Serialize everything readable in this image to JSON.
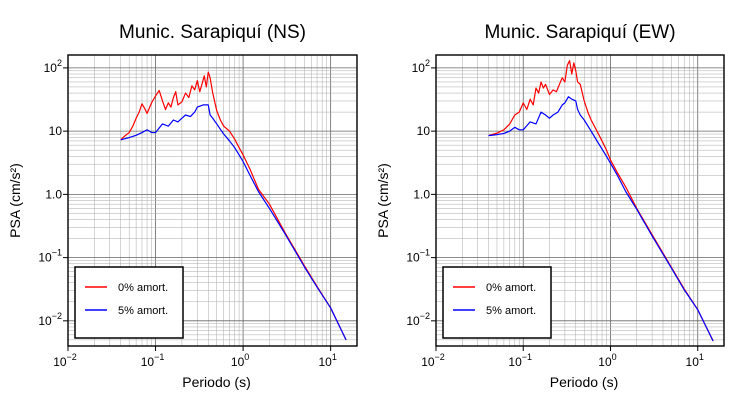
{
  "chart_data": [
    {
      "type": "line",
      "title": "Munic. Sarapiquí (NS)",
      "xlabel": "Periodo (s)",
      "ylabel": "PSA (cm/s²)",
      "xscale": "log",
      "yscale": "log",
      "xlim": [
        0.01,
        20
      ],
      "ylim": [
        0.004,
        160
      ],
      "grid": true,
      "legend_position": "bottom-left",
      "x_ticks": [
        {
          "value": 0.01,
          "base": "10",
          "exp": "−2"
        },
        {
          "value": 0.1,
          "base": "10",
          "exp": "−1"
        },
        {
          "value": 1,
          "base": "10",
          "exp": "0"
        },
        {
          "value": 10,
          "base": "10",
          "exp": "1"
        }
      ],
      "y_ticks": [
        {
          "value": 0.01,
          "base": "10",
          "exp": "−2"
        },
        {
          "value": 0.1,
          "base": "10",
          "exp": "−1"
        },
        {
          "value": 1,
          "text": "1.0"
        },
        {
          "value": 10,
          "text": "10"
        },
        {
          "value": 100,
          "base": "10",
          "exp": "2"
        }
      ],
      "series": [
        {
          "name": "0% amort.",
          "color": "#ff0000",
          "points": [
            [
              0.04,
              7.3
            ],
            [
              0.045,
              8.5
            ],
            [
              0.05,
              9.5
            ],
            [
              0.055,
              12
            ],
            [
              0.06,
              16
            ],
            [
              0.065,
              20
            ],
            [
              0.07,
              27
            ],
            [
              0.075,
              23
            ],
            [
              0.08,
              19
            ],
            [
              0.09,
              28
            ],
            [
              0.1,
              36
            ],
            [
              0.11,
              44
            ],
            [
              0.12,
              30
            ],
            [
              0.13,
              22
            ],
            [
              0.14,
              28
            ],
            [
              0.15,
              24
            ],
            [
              0.16,
              34
            ],
            [
              0.17,
              42
            ],
            [
              0.18,
              26
            ],
            [
              0.2,
              29
            ],
            [
              0.22,
              40
            ],
            [
              0.24,
              34
            ],
            [
              0.26,
              52
            ],
            [
              0.28,
              45
            ],
            [
              0.3,
              63
            ],
            [
              0.32,
              42
            ],
            [
              0.34,
              56
            ],
            [
              0.36,
              75
            ],
            [
              0.38,
              50
            ],
            [
              0.4,
              86
            ],
            [
              0.42,
              70
            ],
            [
              0.45,
              40
            ],
            [
              0.5,
              21
            ],
            [
              0.55,
              15
            ],
            [
              0.6,
              12
            ],
            [
              0.7,
              10
            ],
            [
              0.8,
              7.5
            ],
            [
              0.9,
              5.5
            ],
            [
              1.0,
              4.2
            ],
            [
              1.2,
              2.5
            ],
            [
              1.5,
              1.2
            ],
            [
              2,
              0.7
            ],
            [
              3,
              0.25
            ],
            [
              5,
              0.075
            ],
            [
              7,
              0.035
            ],
            [
              10,
              0.016
            ],
            [
              15,
              0.005
            ]
          ]
        },
        {
          "name": "5% amort.",
          "color": "#0000ff",
          "points": [
            [
              0.04,
              7.3
            ],
            [
              0.05,
              7.9
            ],
            [
              0.06,
              8.6
            ],
            [
              0.07,
              9.5
            ],
            [
              0.08,
              10.5
            ],
            [
              0.09,
              9.5
            ],
            [
              0.1,
              9.5
            ],
            [
              0.12,
              13
            ],
            [
              0.14,
              12
            ],
            [
              0.16,
              15
            ],
            [
              0.18,
              14
            ],
            [
              0.2,
              16
            ],
            [
              0.22,
              18
            ],
            [
              0.25,
              17
            ],
            [
              0.28,
              20
            ],
            [
              0.3,
              24
            ],
            [
              0.35,
              26
            ],
            [
              0.4,
              26
            ],
            [
              0.42,
              18
            ],
            [
              0.45,
              16
            ],
            [
              0.5,
              13
            ],
            [
              0.6,
              9
            ],
            [
              0.7,
              7
            ],
            [
              0.8,
              5.5
            ],
            [
              0.9,
              4.2
            ],
            [
              1.0,
              3.3
            ],
            [
              1.2,
              2
            ],
            [
              1.5,
              1.1
            ],
            [
              2,
              0.6
            ],
            [
              3,
              0.24
            ],
            [
              5,
              0.072
            ],
            [
              7,
              0.034
            ],
            [
              10,
              0.016
            ],
            [
              15,
              0.005
            ]
          ]
        }
      ]
    },
    {
      "type": "line",
      "title": "Munic. Sarapiquí (EW)",
      "xlabel": "Periodo (s)",
      "ylabel": "PSA (cm/s²)",
      "xscale": "log",
      "yscale": "log",
      "xlim": [
        0.01,
        20
      ],
      "ylim": [
        0.004,
        160
      ],
      "grid": true,
      "legend_position": "bottom-left",
      "x_ticks": [
        {
          "value": 0.01,
          "base": "10",
          "exp": "−2"
        },
        {
          "value": 0.1,
          "base": "10",
          "exp": "−1"
        },
        {
          "value": 1,
          "base": "10",
          "exp": "0"
        },
        {
          "value": 10,
          "base": "10",
          "exp": "1"
        }
      ],
      "y_ticks": [
        {
          "value": 0.01,
          "base": "10",
          "exp": "−2"
        },
        {
          "value": 0.1,
          "base": "10",
          "exp": "−1"
        },
        {
          "value": 1,
          "text": "1.0"
        },
        {
          "value": 10,
          "text": "10"
        },
        {
          "value": 100,
          "base": "10",
          "exp": "2"
        }
      ],
      "series": [
        {
          "name": "0% amort.",
          "color": "#ff0000",
          "points": [
            [
              0.04,
              8.5
            ],
            [
              0.05,
              9.3
            ],
            [
              0.06,
              10.5
            ],
            [
              0.07,
              13
            ],
            [
              0.08,
              18
            ],
            [
              0.09,
              20
            ],
            [
              0.1,
              28
            ],
            [
              0.11,
              22
            ],
            [
              0.12,
              32
            ],
            [
              0.13,
              26
            ],
            [
              0.14,
              48
            ],
            [
              0.15,
              40
            ],
            [
              0.16,
              60
            ],
            [
              0.17,
              48
            ],
            [
              0.18,
              55
            ],
            [
              0.2,
              38
            ],
            [
              0.22,
              45
            ],
            [
              0.24,
              42
            ],
            [
              0.26,
              55
            ],
            [
              0.28,
              70
            ],
            [
              0.3,
              60
            ],
            [
              0.32,
              110
            ],
            [
              0.34,
              130
            ],
            [
              0.36,
              80
            ],
            [
              0.38,
              120
            ],
            [
              0.4,
              90
            ],
            [
              0.42,
              60
            ],
            [
              0.45,
              55
            ],
            [
              0.5,
              30
            ],
            [
              0.55,
              20
            ],
            [
              0.6,
              15
            ],
            [
              0.7,
              10
            ],
            [
              0.8,
              7
            ],
            [
              0.9,
              5
            ],
            [
              1.0,
              3.5
            ],
            [
              1.2,
              2.2
            ],
            [
              1.5,
              1.3
            ],
            [
              2,
              0.6
            ],
            [
              3,
              0.23
            ],
            [
              5,
              0.07
            ],
            [
              7,
              0.032
            ],
            [
              10,
              0.015
            ],
            [
              15,
              0.0048
            ]
          ]
        },
        {
          "name": "5% amort.",
          "color": "#0000ff",
          "points": [
            [
              0.04,
              8.5
            ],
            [
              0.05,
              8.8
            ],
            [
              0.06,
              9.2
            ],
            [
              0.07,
              10
            ],
            [
              0.08,
              11.5
            ],
            [
              0.09,
              10.5
            ],
            [
              0.1,
              10.5
            ],
            [
              0.12,
              14
            ],
            [
              0.14,
              13
            ],
            [
              0.16,
              20
            ],
            [
              0.18,
              18
            ],
            [
              0.2,
              16
            ],
            [
              0.22,
              18
            ],
            [
              0.25,
              20
            ],
            [
              0.28,
              26
            ],
            [
              0.3,
              28
            ],
            [
              0.33,
              35
            ],
            [
              0.36,
              32
            ],
            [
              0.4,
              30
            ],
            [
              0.42,
              22
            ],
            [
              0.45,
              18
            ],
            [
              0.5,
              15
            ],
            [
              0.6,
              10
            ],
            [
              0.7,
              7
            ],
            [
              0.8,
              5.2
            ],
            [
              0.9,
              4
            ],
            [
              1.0,
              3.1
            ],
            [
              1.2,
              2
            ],
            [
              1.5,
              1.1
            ],
            [
              2,
              0.58
            ],
            [
              3,
              0.22
            ],
            [
              5,
              0.068
            ],
            [
              7,
              0.031
            ],
            [
              10,
              0.015
            ],
            [
              15,
              0.0048
            ]
          ]
        }
      ]
    }
  ]
}
